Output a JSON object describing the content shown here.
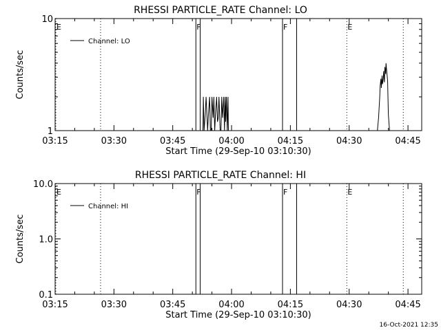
{
  "footer_timestamp": "16-Oct-2021 12:35",
  "chart_data": [
    {
      "type": "line",
      "title": "RHESSI PARTICLE_RATE Channel: LO",
      "xlabel": "Start Time (29-Sep-10 03:10:30)",
      "ylabel": "Counts/sec",
      "yscale": "log",
      "ylim": [
        1,
        10
      ],
      "xlim": [
        4.5,
        98
      ],
      "yticks": [
        1,
        10
      ],
      "ytick_labels": [
        "1",
        "10"
      ],
      "xticks": [
        {
          "x": 4.5,
          "label": "03:15"
        },
        {
          "x": 19.5,
          "label": "03:30"
        },
        {
          "x": 34.5,
          "label": "03:45"
        },
        {
          "x": 49.5,
          "label": "04:00"
        },
        {
          "x": 64.5,
          "label": "04:15"
        },
        {
          "x": 79.5,
          "label": "04:30"
        },
        {
          "x": 94.5,
          "label": "04:45"
        }
      ],
      "legend": {
        "label": "Channel: LO",
        "placement": "top-left"
      },
      "markers": [
        {
          "x": 0.3,
          "label": "E",
          "style": "dotted"
        },
        {
          "x": 16.1,
          "label": "",
          "style": "dotted"
        },
        {
          "x": 40.4,
          "label": "F",
          "style": "solid"
        },
        {
          "x": 41.5,
          "label": "",
          "style": "solid"
        },
        {
          "x": 62.5,
          "label": "F",
          "style": "solid"
        },
        {
          "x": 66.1,
          "label": "",
          "style": "solid"
        },
        {
          "x": 78.9,
          "label": "E",
          "style": "dotted"
        },
        {
          "x": 93.3,
          "label": "",
          "style": "dotted"
        }
      ],
      "series": [
        {
          "x": [
            42.2,
            42.3,
            42.5,
            42.8,
            43.0,
            43.4,
            43.6,
            43.9,
            44.1,
            44.3,
            44.5,
            44.8,
            45.0,
            45.2,
            45.4,
            45.7,
            45.9,
            46.1,
            46.3,
            46.6,
            46.8,
            47.0,
            47.2,
            47.5,
            47.7,
            47.9,
            48.0,
            48.2,
            48.4,
            48.6,
            48.7
          ],
          "y": [
            1,
            2,
            1,
            1.4,
            2,
            1,
            1.4,
            2,
            1,
            1,
            2,
            1.3,
            2,
            1,
            1.4,
            2,
            1.2,
            1.3,
            2,
            1,
            1,
            2,
            1.3,
            2,
            1,
            2,
            1.2,
            2,
            1,
            2,
            1
          ]
        },
        {
          "x": [
            86.7,
            87.0,
            87.3,
            87.4,
            87.6,
            87.7,
            87.9,
            88.0,
            88.2,
            88.3,
            88.5,
            88.6,
            88.8,
            88.9,
            89.1,
            89.3,
            89.5,
            89.8
          ],
          "y": [
            1,
            1.3,
            2.0,
            2.5,
            2.9,
            2.4,
            3.1,
            2.6,
            2.9,
            3.4,
            2.7,
            3.7,
            3.2,
            4.0,
            3.3,
            2.8,
            1.4,
            1
          ]
        }
      ]
    },
    {
      "type": "line",
      "title": "RHESSI PARTICLE_RATE Channel: HI",
      "xlabel": "Start Time (29-Sep-10 03:10:30)",
      "ylabel": "Counts/sec",
      "yscale": "log",
      "ylim": [
        0.1,
        10
      ],
      "xlim": [
        4.5,
        98
      ],
      "yticks": [
        0.1,
        1,
        10
      ],
      "ytick_labels": [
        "0.1",
        "1.0",
        "10.0"
      ],
      "xticks": [
        {
          "x": 4.5,
          "label": "03:15"
        },
        {
          "x": 19.5,
          "label": "03:30"
        },
        {
          "x": 34.5,
          "label": "03:45"
        },
        {
          "x": 49.5,
          "label": "04:00"
        },
        {
          "x": 64.5,
          "label": "04:15"
        },
        {
          "x": 79.5,
          "label": "04:30"
        },
        {
          "x": 94.5,
          "label": "04:45"
        }
      ],
      "legend": {
        "label": "Channel: HI",
        "placement": "top-left"
      },
      "markers": [
        {
          "x": 0.3,
          "label": "E",
          "style": "dotted"
        },
        {
          "x": 16.1,
          "label": "",
          "style": "dotted"
        },
        {
          "x": 40.4,
          "label": "F",
          "style": "solid"
        },
        {
          "x": 41.5,
          "label": "",
          "style": "solid"
        },
        {
          "x": 62.5,
          "label": "F",
          "style": "solid"
        },
        {
          "x": 66.1,
          "label": "",
          "style": "solid"
        },
        {
          "x": 78.9,
          "label": "E",
          "style": "dotted"
        },
        {
          "x": 93.3,
          "label": "",
          "style": "dotted"
        }
      ],
      "series": []
    }
  ]
}
